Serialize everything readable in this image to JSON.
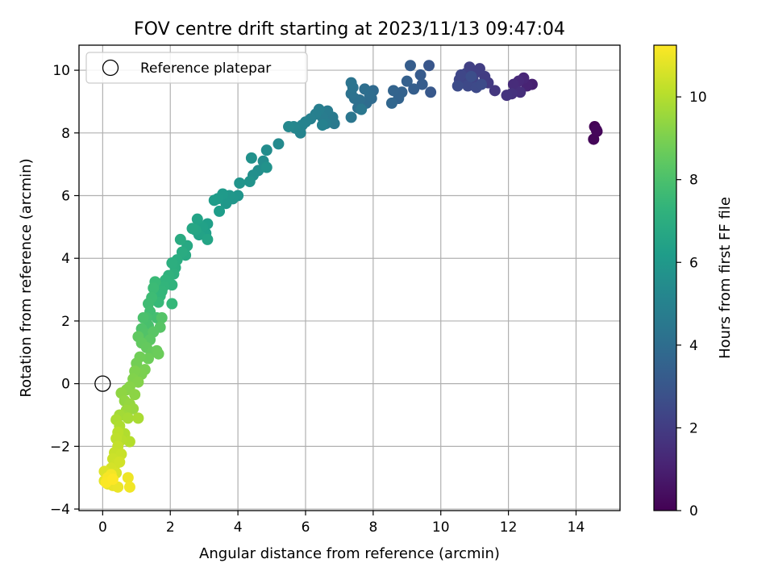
{
  "chart_data": {
    "type": "scatter",
    "title": "FOV centre drift starting at 2023/11/13 09:47:04",
    "xlabel": "Angular distance from reference (arcmin)",
    "ylabel": "Rotation from reference (arcmin)",
    "xlim": [
      -0.7,
      15.3
    ],
    "ylim": [
      -4.05,
      10.8
    ],
    "xticks": [
      0,
      2,
      4,
      6,
      8,
      10,
      12,
      14
    ],
    "yticks": [
      -4,
      -2,
      0,
      2,
      4,
      6,
      8,
      10
    ],
    "xtick_labels": [
      "0",
      "2",
      "4",
      "6",
      "8",
      "10",
      "12",
      "14"
    ],
    "ytick_labels": [
      "−4",
      "−2",
      "0",
      "2",
      "4",
      "6",
      "8",
      "10"
    ],
    "grid": true,
    "legend": {
      "placement": "top-left",
      "entries": [
        "Reference platepar"
      ]
    },
    "colorbar": {
      "label": "Hours from first FF file",
      "colormap": "viridis",
      "range": [
        0,
        11.25
      ],
      "ticks": [
        0,
        2,
        4,
        6,
        8,
        10
      ],
      "tick_labels": [
        "0",
        "2",
        "4",
        "6",
        "8",
        "10"
      ]
    },
    "reference_point": {
      "x": 0,
      "y": 0
    },
    "series": [
      {
        "columns": [
          "x",
          "y",
          "hours"
        ],
        "points": [
          [
            14.55,
            8.2,
            0.05
          ],
          [
            14.62,
            8.05,
            0.1
          ],
          [
            14.52,
            7.8,
            0.15
          ],
          [
            14.6,
            8.1,
            0.2
          ],
          [
            12.7,
            9.55,
            1.0
          ],
          [
            12.55,
            9.5,
            1.1
          ],
          [
            12.45,
            9.75,
            1.2
          ],
          [
            12.3,
            9.65,
            1.3
          ],
          [
            12.15,
            9.55,
            1.4
          ],
          [
            12.35,
            9.3,
            1.5
          ],
          [
            12.1,
            9.25,
            1.6
          ],
          [
            11.95,
            9.2,
            1.7
          ],
          [
            11.6,
            9.35,
            1.8
          ],
          [
            11.4,
            9.6,
            1.9
          ],
          [
            11.3,
            9.8,
            2.0
          ],
          [
            11.15,
            10.05,
            2.05
          ],
          [
            11.0,
            9.9,
            2.1
          ],
          [
            10.85,
            10.1,
            2.15
          ],
          [
            10.75,
            9.9,
            2.2
          ],
          [
            10.95,
            9.7,
            2.25
          ],
          [
            10.7,
            9.6,
            2.3
          ],
          [
            10.55,
            9.7,
            2.35
          ],
          [
            10.6,
            9.85,
            2.4
          ],
          [
            10.8,
            9.5,
            2.45
          ],
          [
            11.05,
            9.45,
            2.5
          ],
          [
            11.2,
            9.55,
            2.55
          ],
          [
            10.5,
            9.5,
            2.6
          ],
          [
            10.9,
            9.8,
            2.65
          ],
          [
            9.65,
            10.15,
            3.0
          ],
          [
            9.7,
            9.3,
            3.1
          ],
          [
            9.4,
            9.85,
            3.2
          ],
          [
            9.45,
            9.55,
            3.25
          ],
          [
            9.1,
            10.15,
            3.3
          ],
          [
            9.2,
            9.4,
            3.35
          ],
          [
            9.0,
            9.65,
            3.4
          ],
          [
            8.85,
            9.3,
            3.5
          ],
          [
            8.75,
            9.1,
            3.55
          ],
          [
            8.6,
            9.35,
            3.6
          ],
          [
            8.55,
            8.95,
            3.7
          ],
          [
            8.0,
            9.35,
            3.85
          ],
          [
            7.95,
            9.1,
            3.9
          ],
          [
            7.8,
            8.95,
            3.95
          ],
          [
            7.9,
            9.2,
            4.0
          ],
          [
            7.75,
            9.4,
            4.05
          ],
          [
            7.6,
            9.05,
            4.1
          ],
          [
            7.55,
            8.8,
            4.15
          ],
          [
            7.45,
            9.1,
            4.2
          ],
          [
            7.35,
            9.25,
            4.25
          ],
          [
            7.4,
            9.45,
            4.3
          ],
          [
            7.35,
            9.6,
            4.35
          ],
          [
            7.35,
            8.5,
            4.4
          ],
          [
            7.65,
            8.75,
            4.45
          ],
          [
            6.85,
            8.3,
            4.55
          ],
          [
            6.8,
            8.5,
            4.6
          ],
          [
            6.65,
            8.7,
            4.65
          ],
          [
            6.5,
            8.5,
            4.7
          ],
          [
            6.6,
            8.3,
            4.75
          ],
          [
            6.4,
            8.75,
            4.8
          ],
          [
            6.3,
            8.6,
            4.85
          ],
          [
            6.15,
            8.45,
            4.9
          ],
          [
            6.5,
            8.25,
            4.95
          ],
          [
            6.0,
            8.35,
            5.0
          ],
          [
            5.9,
            8.25,
            5.05
          ],
          [
            5.85,
            8.0,
            5.1
          ],
          [
            5.7,
            8.15,
            5.15
          ],
          [
            5.65,
            8.2,
            5.2
          ],
          [
            5.5,
            8.2,
            5.25
          ],
          [
            5.2,
            7.65,
            5.35
          ],
          [
            4.85,
            7.45,
            5.45
          ],
          [
            4.75,
            7.1,
            5.5
          ],
          [
            4.6,
            6.8,
            5.55
          ],
          [
            4.45,
            6.65,
            5.6
          ],
          [
            4.4,
            7.2,
            5.65
          ],
          [
            4.85,
            6.9,
            5.7
          ],
          [
            4.35,
            6.45,
            5.75
          ],
          [
            4.05,
            6.4,
            5.8
          ],
          [
            4.0,
            6.0,
            5.85
          ],
          [
            3.85,
            5.9,
            5.9
          ],
          [
            3.75,
            6.0,
            5.95
          ],
          [
            3.65,
            5.75,
            6.0
          ],
          [
            3.55,
            6.05,
            6.05
          ],
          [
            3.4,
            5.9,
            6.1
          ],
          [
            3.3,
            5.85,
            6.15
          ],
          [
            3.45,
            5.5,
            6.2
          ],
          [
            3.1,
            5.1,
            6.3
          ],
          [
            3.05,
            4.8,
            6.35
          ],
          [
            2.95,
            5.0,
            6.4
          ],
          [
            2.85,
            4.75,
            6.45
          ],
          [
            2.8,
            5.25,
            6.5
          ],
          [
            3.1,
            4.6,
            6.55
          ],
          [
            2.75,
            4.9,
            6.6
          ],
          [
            2.65,
            4.95,
            6.65
          ],
          [
            2.5,
            4.4,
            6.75
          ],
          [
            2.45,
            4.1,
            6.8
          ],
          [
            2.3,
            4.6,
            6.85
          ],
          [
            2.35,
            4.2,
            6.9
          ],
          [
            2.2,
            3.95,
            6.95
          ],
          [
            2.15,
            3.7,
            7.0
          ],
          [
            2.05,
            3.85,
            7.05
          ],
          [
            2.1,
            3.5,
            7.1
          ],
          [
            1.95,
            3.45,
            7.2
          ],
          [
            2.05,
            3.15,
            7.25
          ],
          [
            1.85,
            3.3,
            7.3
          ],
          [
            1.8,
            3.1,
            7.35
          ],
          [
            1.75,
            2.95,
            7.4
          ],
          [
            1.7,
            2.8,
            7.45
          ],
          [
            2.05,
            2.55,
            7.5
          ],
          [
            1.65,
            2.6,
            7.55
          ],
          [
            1.55,
            3.25,
            7.6
          ],
          [
            1.5,
            3.05,
            7.65
          ],
          [
            1.45,
            2.75,
            7.7
          ],
          [
            1.35,
            2.55,
            7.75
          ],
          [
            1.4,
            2.3,
            7.8
          ],
          [
            1.6,
            2.1,
            7.85
          ],
          [
            1.3,
            2.1,
            7.9
          ],
          [
            1.35,
            1.85,
            7.95
          ],
          [
            1.2,
            2.1,
            8.0
          ],
          [
            1.15,
            1.75,
            8.1
          ],
          [
            1.25,
            1.6,
            8.15
          ],
          [
            1.75,
            2.1,
            8.2
          ],
          [
            1.7,
            1.8,
            8.25
          ],
          [
            1.5,
            1.65,
            8.3
          ],
          [
            1.4,
            1.4,
            8.35
          ],
          [
            1.05,
            1.5,
            8.45
          ],
          [
            1.15,
            1.3,
            8.5
          ],
          [
            1.3,
            1.15,
            8.55
          ],
          [
            1.45,
            1.0,
            8.6
          ],
          [
            1.6,
            1.05,
            8.65
          ],
          [
            1.65,
            0.95,
            8.7
          ],
          [
            1.35,
            0.8,
            8.75
          ],
          [
            1.1,
            0.85,
            8.8
          ],
          [
            1.0,
            0.65,
            8.85
          ],
          [
            1.25,
            0.45,
            8.95
          ],
          [
            1.15,
            0.3,
            9.0
          ],
          [
            0.95,
            0.4,
            9.05
          ],
          [
            0.9,
            0.15,
            9.1
          ],
          [
            1.05,
            0.05,
            9.15
          ],
          [
            0.8,
            -0.1,
            9.2
          ],
          [
            0.7,
            -0.2,
            9.25
          ],
          [
            0.95,
            -0.35,
            9.3
          ],
          [
            0.55,
            -0.3,
            9.35
          ],
          [
            0.65,
            -0.55,
            9.4
          ],
          [
            0.8,
            -0.65,
            9.45
          ],
          [
            0.9,
            -0.8,
            9.5
          ],
          [
            0.7,
            -0.85,
            9.55
          ],
          [
            0.6,
            -1.0,
            9.6
          ],
          [
            0.5,
            -1.0,
            9.7
          ],
          [
            0.75,
            -1.1,
            9.75
          ],
          [
            1.05,
            -1.1,
            9.8
          ],
          [
            0.4,
            -1.15,
            9.85
          ],
          [
            0.5,
            -1.35,
            9.9
          ],
          [
            0.65,
            -1.6,
            9.95
          ],
          [
            0.8,
            -1.85,
            10.0
          ],
          [
            0.55,
            -1.8,
            10.05
          ],
          [
            0.45,
            -1.55,
            10.1
          ],
          [
            0.4,
            -1.75,
            10.15
          ],
          [
            0.45,
            -2.0,
            10.25
          ],
          [
            0.35,
            -2.2,
            10.3
          ],
          [
            0.55,
            -2.25,
            10.35
          ],
          [
            0.3,
            -2.4,
            10.4
          ],
          [
            0.4,
            -2.55,
            10.45
          ],
          [
            0.5,
            -2.5,
            10.5
          ],
          [
            0.25,
            -2.7,
            10.55
          ],
          [
            0.4,
            -2.85,
            10.6
          ],
          [
            0.05,
            -2.8,
            10.7
          ],
          [
            0.2,
            -3.0,
            10.75
          ],
          [
            0.05,
            -3.1,
            10.8
          ],
          [
            0.15,
            -3.2,
            10.85
          ],
          [
            0.3,
            -3.25,
            10.9
          ],
          [
            0.45,
            -3.3,
            10.95
          ],
          [
            0.75,
            -3.0,
            11.0
          ],
          [
            0.8,
            -3.3,
            11.05
          ],
          [
            0.25,
            -2.9,
            11.1
          ],
          [
            0.15,
            -3.0,
            11.15
          ],
          [
            0.1,
            -3.15,
            11.2
          ],
          [
            0.3,
            -3.05,
            11.25
          ]
        ]
      }
    ]
  }
}
